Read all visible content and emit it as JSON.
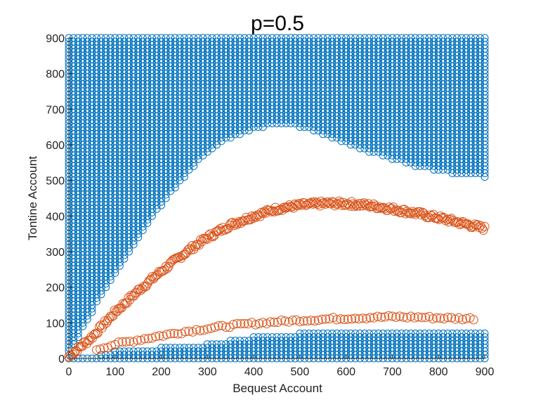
{
  "chart_data": {
    "type": "scatter",
    "title": "p=0.5",
    "xlabel": "Bequest Account",
    "ylabel": "Tontine Account",
    "xlim": [
      0,
      900
    ],
    "ylim": [
      0,
      900
    ],
    "x_ticks": [
      "0",
      "100",
      "200",
      "300",
      "400",
      "500",
      "600",
      "700",
      "800",
      "900"
    ],
    "y_ticks": [
      "0",
      "100",
      "200",
      "300",
      "400",
      "500",
      "600",
      "700",
      "800",
      "900"
    ],
    "grid": false,
    "legend": "none",
    "marker": "open-circle",
    "series": [
      {
        "color": "#0072BD",
        "description": "grid region points",
        "upper_region": {
          "x_range": [
            0,
            900
          ],
          "y_top": 900,
          "lower_boundary": [
            [
              0,
              20
            ],
            [
              20,
              60
            ],
            [
              50,
              130
            ],
            [
              100,
              240
            ],
            [
              150,
              340
            ],
            [
              200,
              430
            ],
            [
              250,
              510
            ],
            [
              300,
              580
            ],
            [
              350,
              620
            ],
            [
              400,
              645
            ],
            [
              450,
              655
            ],
            [
              500,
              650
            ],
            [
              550,
              630
            ],
            [
              600,
              605
            ],
            [
              650,
              580
            ],
            [
              700,
              560
            ],
            [
              750,
              540
            ],
            [
              800,
              525
            ],
            [
              850,
              515
            ],
            [
              900,
              510
            ]
          ]
        },
        "lower_region": {
          "upper_boundary": [
            [
              0,
              5
            ],
            [
              50,
              5
            ],
            [
              100,
              20
            ],
            [
              200,
              30
            ],
            [
              300,
              40
            ],
            [
              400,
              60
            ],
            [
              500,
              70
            ],
            [
              600,
              70
            ],
            [
              700,
              70
            ],
            [
              800,
              70
            ],
            [
              900,
              70
            ]
          ]
        }
      },
      {
        "color": "#D95319",
        "description": "upper curve points",
        "curve": [
          [
            0,
            5
          ],
          [
            50,
            60
          ],
          [
            100,
            130
          ],
          [
            150,
            190
          ],
          [
            200,
            245
          ],
          [
            250,
            295
          ],
          [
            300,
            340
          ],
          [
            350,
            375
          ],
          [
            400,
            400
          ],
          [
            450,
            420
          ],
          [
            500,
            430
          ],
          [
            550,
            435
          ],
          [
            600,
            435
          ],
          [
            650,
            430
          ],
          [
            700,
            420
          ],
          [
            750,
            408
          ],
          [
            800,
            395
          ],
          [
            850,
            380
          ],
          [
            900,
            365
          ]
        ]
      },
      {
        "color": "#D95319",
        "description": "lower curve points",
        "curve": [
          [
            60,
            25
          ],
          [
            100,
            40
          ],
          [
            150,
            52
          ],
          [
            200,
            64
          ],
          [
            250,
            75
          ],
          [
            300,
            84
          ],
          [
            350,
            92
          ],
          [
            400,
            98
          ],
          [
            450,
            103
          ],
          [
            500,
            107
          ],
          [
            550,
            110
          ],
          [
            600,
            113
          ],
          [
            650,
            115
          ],
          [
            700,
            117
          ],
          [
            750,
            116
          ],
          [
            800,
            114
          ],
          [
            850,
            112
          ],
          [
            880,
            112
          ]
        ]
      }
    ]
  }
}
